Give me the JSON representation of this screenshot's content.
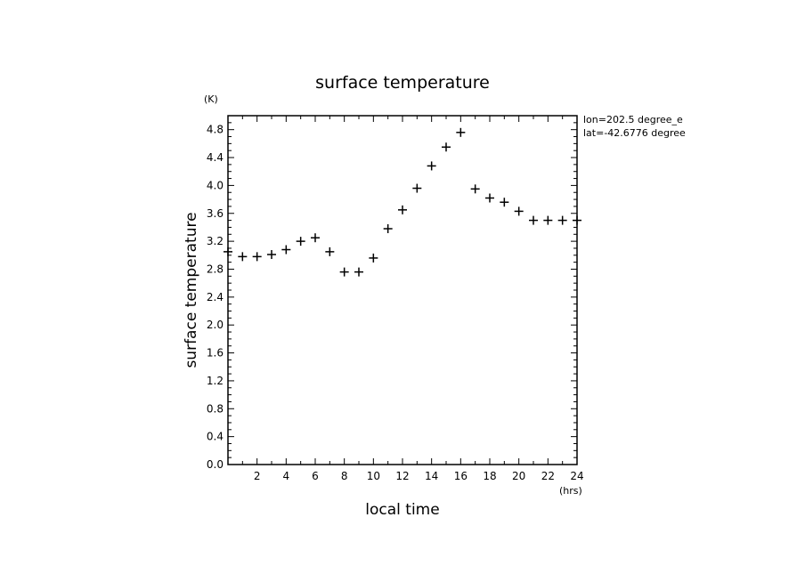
{
  "chart_data": {
    "type": "scatter",
    "title": "surface temperature",
    "xlabel": "local time",
    "ylabel": "surface temperature",
    "x_unit": "(hrs)",
    "y_unit": "(K)",
    "annotation_lines": [
      "lon=202.5 degree_e",
      "lat=-42.6776 degree"
    ],
    "xlim": [
      0,
      24
    ],
    "ylim": [
      0,
      5.0
    ],
    "x_ticks": [
      "2",
      "4",
      "6",
      "8",
      "10",
      "12",
      "14",
      "16",
      "18",
      "20",
      "22",
      "24"
    ],
    "y_ticks": [
      "0.0",
      "0.4",
      "0.8",
      "1.2",
      "1.6",
      "2.0",
      "2.4",
      "2.8",
      "3.2",
      "3.6",
      "4.0",
      "4.4",
      "4.8"
    ],
    "grid": false,
    "marker": "plus",
    "x": [
      0.0,
      1.0,
      2.0,
      3.0,
      4.0,
      5.0,
      6.0,
      7.0,
      8.0,
      9.0,
      10.0,
      11.0,
      12.0,
      13.0,
      14.0,
      15.0,
      16.0,
      17.0,
      18.0,
      19.0,
      20.0,
      21.0,
      22.0,
      23.0,
      24.0
    ],
    "y": [
      3.05,
      2.98,
      2.98,
      3.01,
      3.08,
      3.2,
      3.25,
      3.05,
      2.76,
      2.76,
      2.96,
      3.38,
      3.65,
      3.96,
      4.28,
      4.55,
      4.76,
      3.95,
      3.82,
      3.76,
      3.63,
      3.5,
      3.5,
      3.5,
      3.5
    ]
  }
}
